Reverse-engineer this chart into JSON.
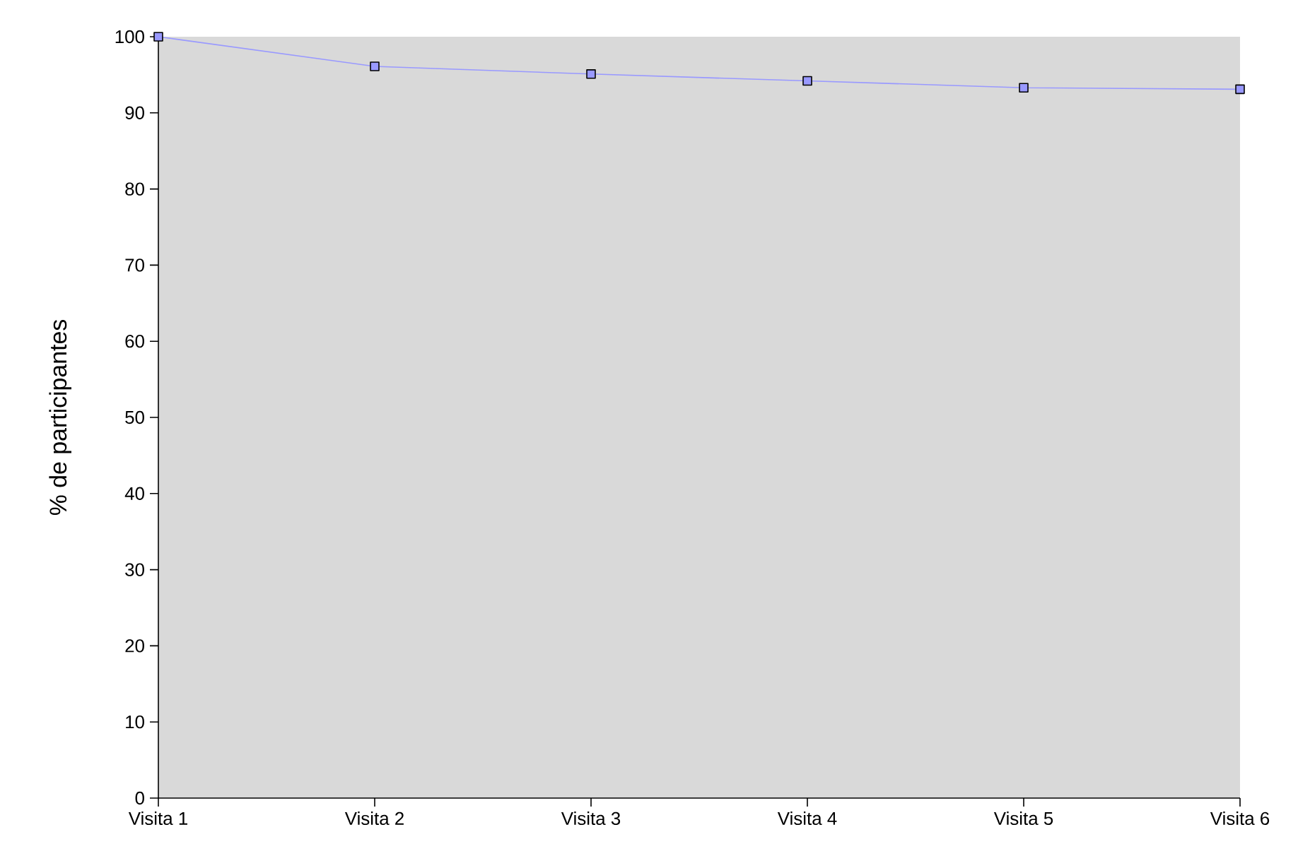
{
  "chart_data": {
    "type": "line",
    "ylabel": "% de participantes",
    "categories": [
      "Visita 1",
      "Visita 2",
      "Visita 3",
      "Visita 4",
      "Visita 5",
      "Visita 6"
    ],
    "series": [
      {
        "color": "#9999ff",
        "values": [
          100,
          96.1,
          95.1,
          94.2,
          93.3,
          93.1
        ]
      }
    ],
    "ylim": [
      0,
      100
    ],
    "yticks": [
      0,
      10,
      20,
      30,
      40,
      50,
      60,
      70,
      80,
      90,
      100
    ],
    "marker": "square",
    "grid": false,
    "legend": false
  }
}
